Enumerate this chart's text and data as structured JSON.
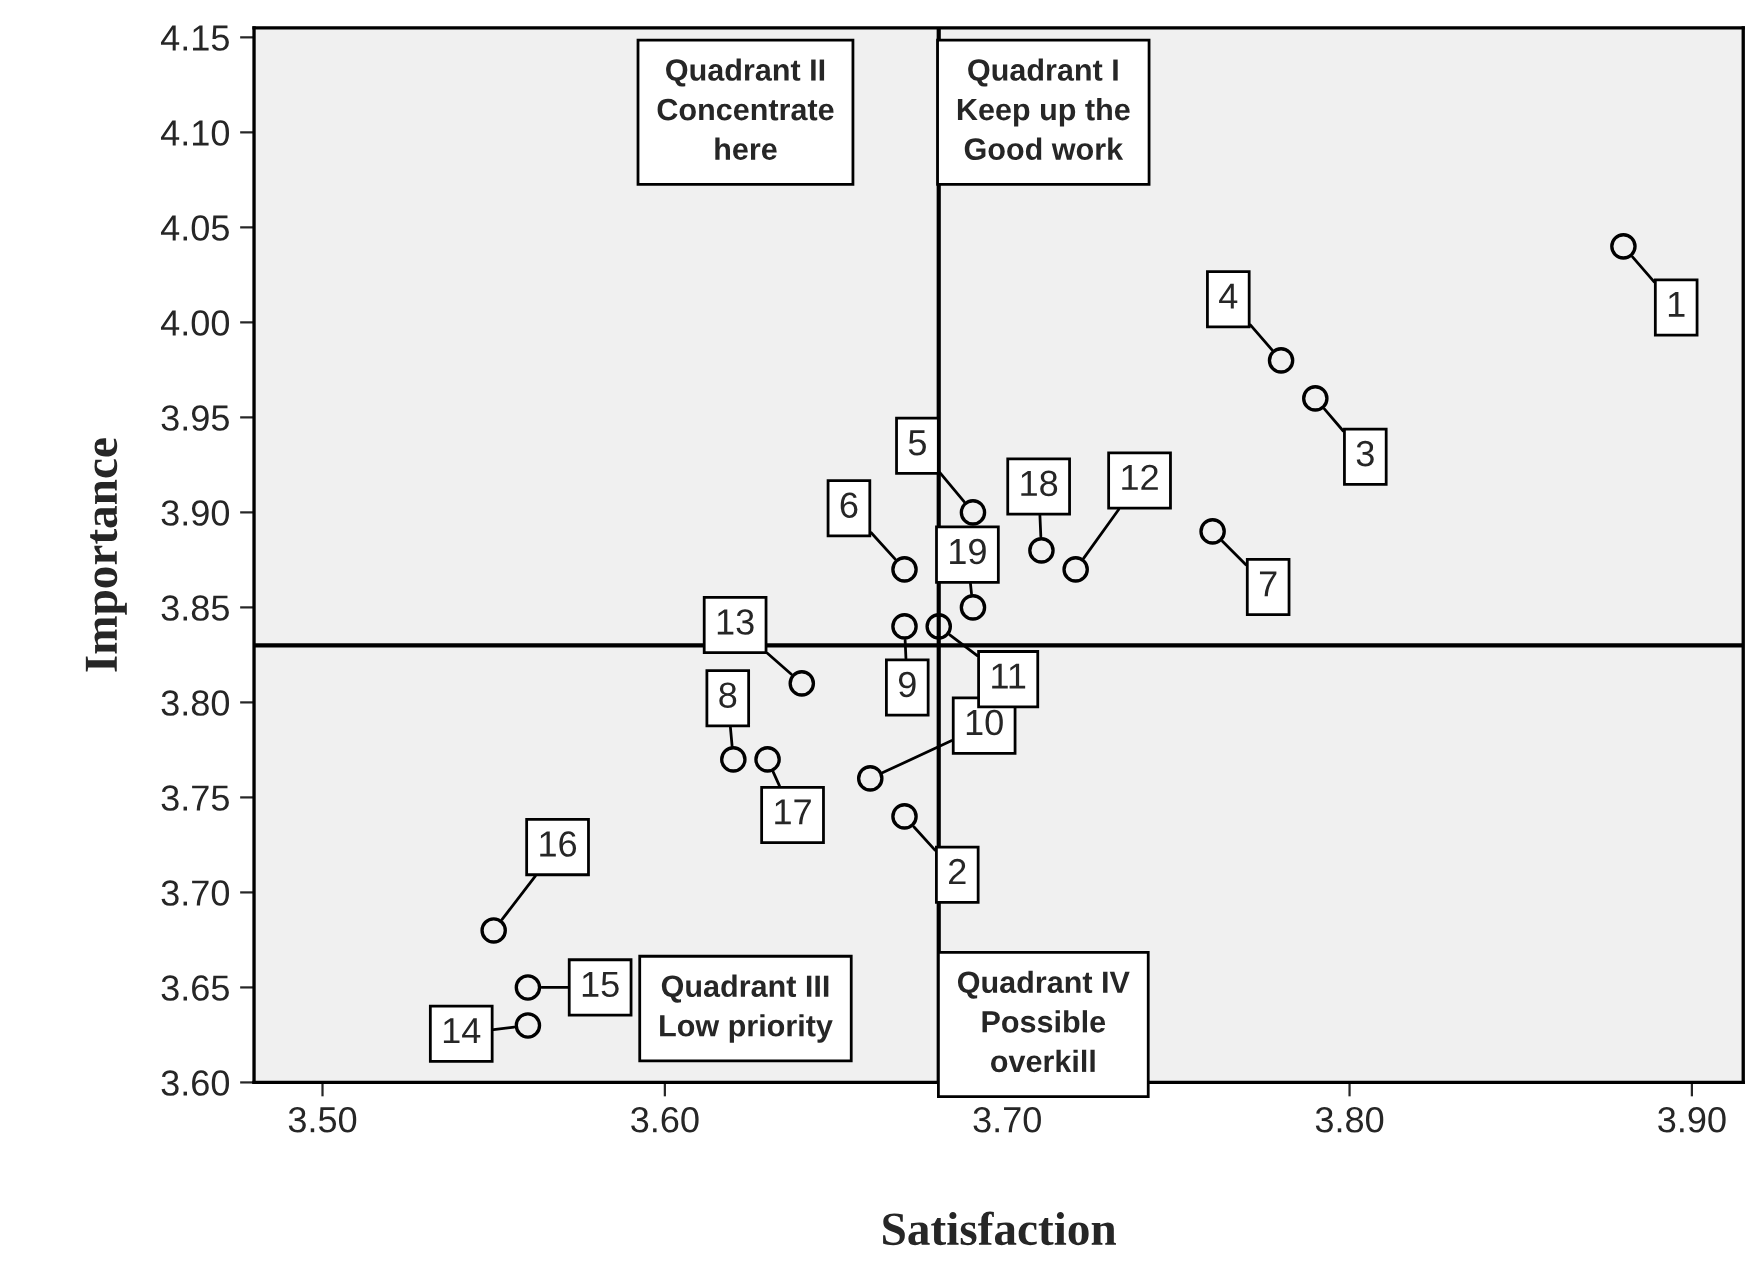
{
  "chart_data": {
    "type": "scatter",
    "xlabel": "Satisfaction",
    "ylabel": "Importance",
    "x": [
      3.88,
      3.67,
      3.79,
      3.78,
      3.69,
      3.67,
      3.76,
      3.62,
      3.67,
      3.66,
      3.68,
      3.72,
      3.64,
      3.56,
      3.56,
      3.55,
      3.63,
      3.71,
      3.69
    ],
    "series": [
      {
        "color": "#000000",
        "values": [
          4.04,
          3.74,
          3.96,
          3.98,
          3.9,
          3.87,
          3.89,
          3.77,
          3.84,
          3.76,
          3.84,
          3.87,
          3.81,
          3.63,
          3.65,
          3.68,
          3.77,
          3.88,
          3.85
        ]
      }
    ],
    "marker": "circle",
    "xlim": [
      3.48,
      3.915
    ],
    "xticks": [
      {
        "value": 3.5,
        "label": "3.50"
      },
      {
        "value": 3.6,
        "label": "3.60"
      },
      {
        "value": 3.7,
        "label": "3.70"
      },
      {
        "value": 3.8,
        "label": "3.80"
      },
      {
        "value": 3.9,
        "label": "3.90"
      }
    ],
    "ylim": [
      3.6,
      4.155
    ],
    "yticks": [
      {
        "value": 3.6,
        "label": "3.60"
      },
      {
        "value": 3.65,
        "label": "3.65"
      },
      {
        "value": 3.7,
        "label": "3.70"
      },
      {
        "value": 3.75,
        "label": "3.75"
      },
      {
        "value": 3.8,
        "label": "3.80"
      },
      {
        "value": 3.85,
        "label": "3.85"
      },
      {
        "value": 3.9,
        "label": "3.90"
      },
      {
        "value": 3.95,
        "label": "3.95"
      },
      {
        "value": 4.0,
        "label": "4.00"
      },
      {
        "value": 4.05,
        "label": "4.05"
      },
      {
        "value": 4.1,
        "label": "4.10"
      },
      {
        "value": 4.15,
        "label": "4.15"
      }
    ],
    "ref_lines": [
      {
        "axis": "x",
        "value": 3.68,
        "color": "#000000"
      },
      {
        "axis": "y",
        "value": 3.83,
        "color": "#000000"
      }
    ],
    "grid": false,
    "legend": false,
    "annotations": [
      {
        "text": "1",
        "x": 3.88,
        "y": 4.04
      },
      {
        "text": "2",
        "x": 3.67,
        "y": 3.74
      },
      {
        "text": "3",
        "x": 3.79,
        "y": 3.96
      },
      {
        "text": "4",
        "x": 3.78,
        "y": 3.98
      },
      {
        "text": "5",
        "x": 3.69,
        "y": 3.9
      },
      {
        "text": "6",
        "x": 3.67,
        "y": 3.87
      },
      {
        "text": "7",
        "x": 3.76,
        "y": 3.89
      },
      {
        "text": "8",
        "x": 3.62,
        "y": 3.77
      },
      {
        "text": "9",
        "x": 3.67,
        "y": 3.84
      },
      {
        "text": "10",
        "x": 3.66,
        "y": 3.76
      },
      {
        "text": "11",
        "x": 3.68,
        "y": 3.84
      },
      {
        "text": "12",
        "x": 3.72,
        "y": 3.87
      },
      {
        "text": "13",
        "x": 3.64,
        "y": 3.81
      },
      {
        "text": "14",
        "x": 3.56,
        "y": 3.63
      },
      {
        "text": "15",
        "x": 3.56,
        "y": 3.65
      },
      {
        "text": "16",
        "x": 3.55,
        "y": 3.68
      },
      {
        "text": "17",
        "x": 3.63,
        "y": 3.77
      },
      {
        "text": "18",
        "x": 3.71,
        "y": 3.88
      },
      {
        "text": "19",
        "x": 3.69,
        "y": 3.85
      },
      "Quadrant II\nConcentrate\nhere",
      "Quadrant I\nKeep up the\nGood work",
      "Quadrant III\nLow priority",
      "Quadrant IV\nPossible\noverkill"
    ]
  }
}
